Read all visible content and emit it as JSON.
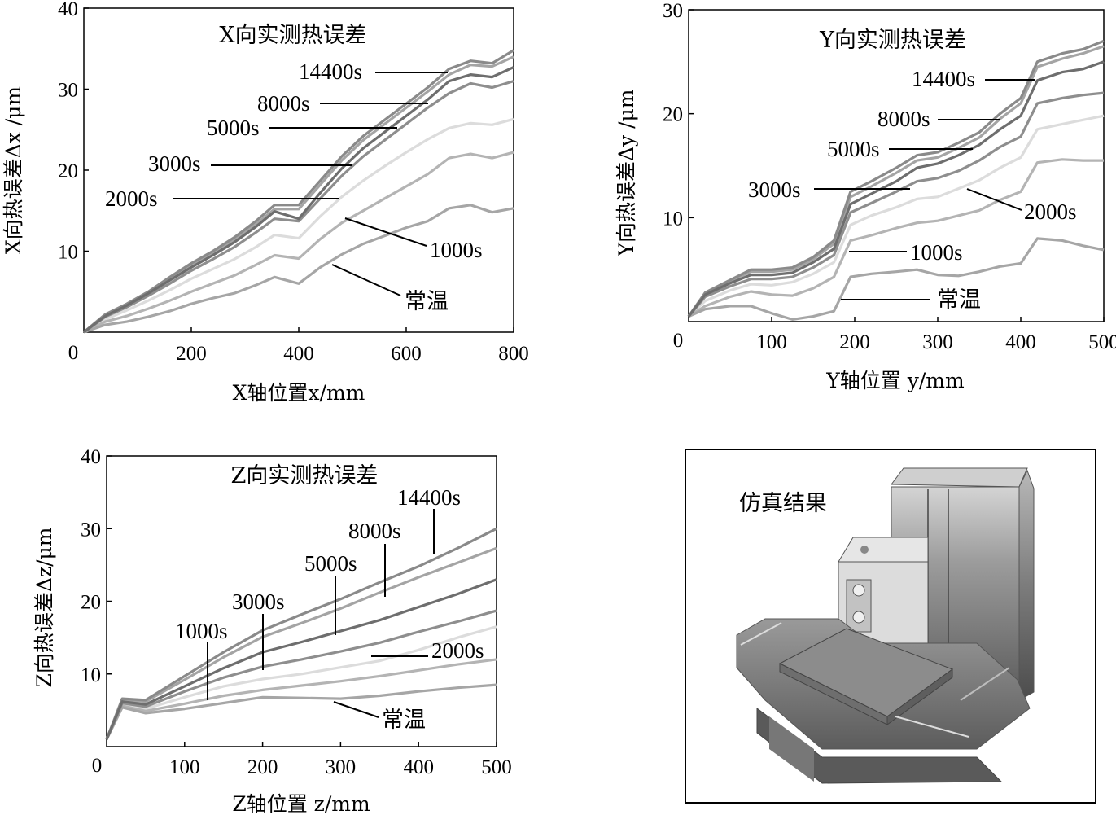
{
  "chart_data": [
    {
      "type": "line",
      "title": "X向实测热误差",
      "xlabel": "X轴位置x/mm",
      "ylabel": "X向热误差Δx /μm",
      "xlim": [
        0,
        800
      ],
      "ylim": [
        0,
        40
      ],
      "xticks": [
        "0",
        "200",
        "400",
        "600",
        "800"
      ],
      "yticks": [
        "10",
        "20",
        "30",
        "40"
      ],
      "x": [
        0,
        40,
        80,
        120,
        160,
        200,
        240,
        280,
        320,
        355,
        400,
        440,
        480,
        520,
        560,
        600,
        640,
        680,
        720,
        760,
        800
      ],
      "series": [
        {
          "name": "14400s",
          "values": [
            0,
            2.2,
            3.5,
            5.0,
            6.8,
            8.5,
            10.0,
            11.7,
            13.7,
            15.7,
            15.7,
            18.7,
            21.7,
            24.2,
            26.2,
            28.2,
            30.2,
            32.5,
            33.5,
            33.2,
            34.8
          ]
        },
        {
          "name": "8000s",
          "values": [
            0,
            2.1,
            3.4,
            4.9,
            6.6,
            8.3,
            9.8,
            11.4,
            13.3,
            15.2,
            15.2,
            18.2,
            21.2,
            23.7,
            25.7,
            27.7,
            29.7,
            31.8,
            33.0,
            32.8,
            34.0
          ]
        },
        {
          "name": "5000s",
          "values": [
            0,
            2.0,
            3.3,
            4.8,
            6.4,
            8.0,
            9.5,
            11.1,
            13.0,
            14.9,
            14.0,
            17.2,
            20.2,
            22.7,
            24.7,
            26.7,
            28.7,
            31.0,
            31.8,
            31.5,
            32.7
          ]
        },
        {
          "name": "3000s",
          "values": [
            0,
            1.9,
            3.1,
            4.5,
            6.0,
            7.6,
            9.0,
            10.5,
            12.3,
            14.0,
            13.7,
            16.5,
            19.3,
            21.7,
            23.7,
            25.7,
            27.7,
            29.5,
            30.7,
            30.2,
            31.0
          ]
        },
        {
          "name": "2000s",
          "values": [
            0,
            1.6,
            2.7,
            3.9,
            5.2,
            6.6,
            7.8,
            9.0,
            10.5,
            12.0,
            11.6,
            14.3,
            16.7,
            18.7,
            20.5,
            22.2,
            23.8,
            25.2,
            25.8,
            25.6,
            26.3
          ]
        },
        {
          "name": "1000s",
          "values": [
            0,
            1.3,
            2.0,
            2.9,
            3.9,
            5.0,
            6.0,
            7.0,
            8.3,
            9.5,
            9.1,
            11.5,
            13.5,
            15.0,
            16.5,
            18.0,
            19.5,
            21.5,
            22.0,
            21.5,
            22.2
          ]
        },
        {
          "name": "常温",
          "values": [
            0,
            0.9,
            1.3,
            1.9,
            2.6,
            3.5,
            4.2,
            4.8,
            5.8,
            6.8,
            6.0,
            8.0,
            9.6,
            10.9,
            11.9,
            12.9,
            13.7,
            15.3,
            15.7,
            14.8,
            15.3
          ]
        }
      ],
      "annotations": [
        "14400s",
        "8000s",
        "5000s",
        "3000s",
        "2000s",
        "1000s",
        "常温"
      ]
    },
    {
      "type": "line",
      "title": "Y向实测热误差",
      "xlabel": "Y轴位置 y/mm",
      "ylabel": "Y向热误差Δy /μm",
      "xlim": [
        0,
        500
      ],
      "ylim": [
        0,
        30
      ],
      "xticks": [
        "0",
        "100",
        "200",
        "300",
        "400",
        "500"
      ],
      "yticks": [
        "10",
        "20",
        "30"
      ],
      "x": [
        0,
        20,
        50,
        75,
        100,
        125,
        150,
        175,
        195,
        220,
        250,
        275,
        300,
        325,
        350,
        375,
        400,
        420,
        450,
        475,
        500
      ],
      "series": [
        {
          "name": "14400s",
          "values": [
            0.5,
            2.8,
            4.0,
            5.0,
            5.0,
            5.2,
            6.2,
            7.8,
            12.5,
            13.5,
            14.8,
            16.0,
            16.3,
            17.2,
            18.2,
            20.0,
            21.5,
            25.0,
            25.8,
            26.2,
            27.0
          ]
        },
        {
          "name": "8000s",
          "values": [
            0.5,
            2.7,
            3.9,
            4.8,
            4.8,
            5.0,
            6.0,
            7.5,
            12.0,
            13.0,
            14.3,
            15.5,
            15.8,
            16.7,
            17.7,
            19.5,
            21.0,
            24.5,
            25.3,
            25.8,
            26.5
          ]
        },
        {
          "name": "5000s",
          "values": [
            0.5,
            2.6,
            3.7,
            4.5,
            4.5,
            4.7,
            5.7,
            7.0,
            11.3,
            12.3,
            13.5,
            14.8,
            15.2,
            16.0,
            17.0,
            18.5,
            19.8,
            23.2,
            24.0,
            24.3,
            25.0
          ]
        },
        {
          "name": "3000s",
          "values": [
            0.5,
            2.4,
            3.4,
            4.1,
            4.1,
            4.3,
            5.2,
            6.4,
            10.5,
            11.4,
            12.5,
            13.5,
            13.8,
            14.5,
            15.5,
            16.8,
            17.8,
            21.0,
            21.5,
            21.8,
            22.0
          ]
        },
        {
          "name": "2000s",
          "values": [
            0.5,
            2.0,
            3.0,
            3.6,
            3.5,
            3.8,
            4.6,
            5.7,
            9.3,
            10.2,
            11.0,
            11.8,
            12.0,
            12.8,
            13.6,
            14.8,
            15.8,
            18.5,
            19.0,
            19.4,
            19.8
          ]
        },
        {
          "name": "1000s",
          "values": [
            0.5,
            1.5,
            2.4,
            2.9,
            2.6,
            2.5,
            3.2,
            4.3,
            7.8,
            8.3,
            9.0,
            9.5,
            9.7,
            10.2,
            10.7,
            11.7,
            12.5,
            15.3,
            15.6,
            15.5,
            15.5
          ]
        },
        {
          "name": "常温",
          "values": [
            0.5,
            1.2,
            1.5,
            1.5,
            0.8,
            0.2,
            0.5,
            1.0,
            4.3,
            4.6,
            4.8,
            5.0,
            4.5,
            4.4,
            4.8,
            5.3,
            5.6,
            8.0,
            7.8,
            7.3,
            6.9
          ]
        }
      ],
      "annotations": [
        "14400s",
        "8000s",
        "5000s",
        "3000s",
        "1000s",
        "2000s",
        "常温"
      ]
    },
    {
      "type": "line",
      "title": "Z向实测热误差",
      "xlabel": "Z轴位置 z/mm",
      "ylabel": "Z向热误差Δz/μm",
      "xlim": [
        0,
        500
      ],
      "ylim": [
        0,
        40
      ],
      "xticks": [
        "0",
        "100",
        "200",
        "300",
        "400",
        "500"
      ],
      "yticks": [
        "10",
        "20",
        "30",
        "40"
      ],
      "x": [
        0,
        20,
        50,
        100,
        150,
        200,
        250,
        300,
        350,
        400,
        450,
        500
      ],
      "series": [
        {
          "name": "14400s",
          "values": [
            1.0,
            6.6,
            6.4,
            9.7,
            13.0,
            16.0,
            18.2,
            20.3,
            22.6,
            24.8,
            27.3,
            30.0
          ]
        },
        {
          "name": "8000s",
          "values": [
            1.0,
            6.4,
            6.2,
            9.2,
            12.3,
            15.1,
            17.0,
            19.0,
            21.2,
            23.3,
            25.3,
            27.3
          ]
        },
        {
          "name": "5000s",
          "values": [
            1.0,
            6.2,
            5.8,
            8.3,
            10.8,
            13.0,
            14.4,
            15.9,
            17.4,
            19.2,
            21.0,
            23.0
          ]
        },
        {
          "name": "3000s",
          "values": [
            1.0,
            6.0,
            5.5,
            7.6,
            9.5,
            11.0,
            12.0,
            13.1,
            14.3,
            15.8,
            17.2,
            18.7
          ]
        },
        {
          "name": "2000s",
          "values": [
            1.0,
            5.8,
            5.2,
            6.8,
            8.3,
            9.3,
            10.0,
            10.9,
            11.8,
            13.3,
            15.0,
            16.5
          ]
        },
        {
          "name": "1000s",
          "values": [
            1.0,
            5.6,
            4.9,
            5.9,
            7.0,
            7.8,
            8.4,
            9.0,
            9.7,
            10.5,
            11.3,
            12.0
          ]
        },
        {
          "name": "常温",
          "values": [
            1.0,
            5.4,
            4.6,
            5.2,
            6.0,
            6.8,
            6.7,
            6.6,
            7.0,
            7.6,
            8.1,
            8.5
          ]
        }
      ],
      "annotations": [
        "14400s",
        "8000s",
        "5000s",
        "3000s",
        "1000s",
        "2000s",
        "常温"
      ]
    }
  ],
  "simulation": {
    "caption": "仿真结果"
  },
  "colors": {
    "axis": "#000000",
    "series": [
      "#8a8a8a",
      "#a4a4a4",
      "#6e6e6e",
      "#8e8e8e",
      "#dcdcdc",
      "#b4b4b4",
      "#a6a6a6"
    ]
  }
}
